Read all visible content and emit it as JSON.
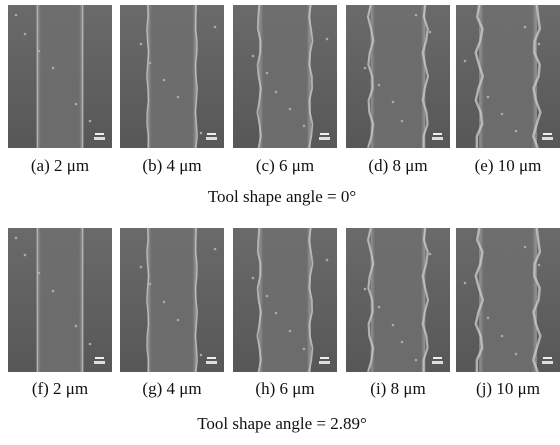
{
  "figures": [
    {
      "panels": [
        "(a) 2 μm",
        "(b) 4 μm",
        "(c) 6 μm",
        "(d) 8 μm",
        "(e) 10 μm"
      ],
      "caption": "Tool shape angle = 0°"
    },
    {
      "panels": [
        "(f) 2 μm",
        "(g) 4 μm",
        "(h) 6 μm",
        "(i) 8 μm",
        "(j) 10 μm"
      ],
      "caption": "Tool shape angle = 2.89°"
    }
  ]
}
